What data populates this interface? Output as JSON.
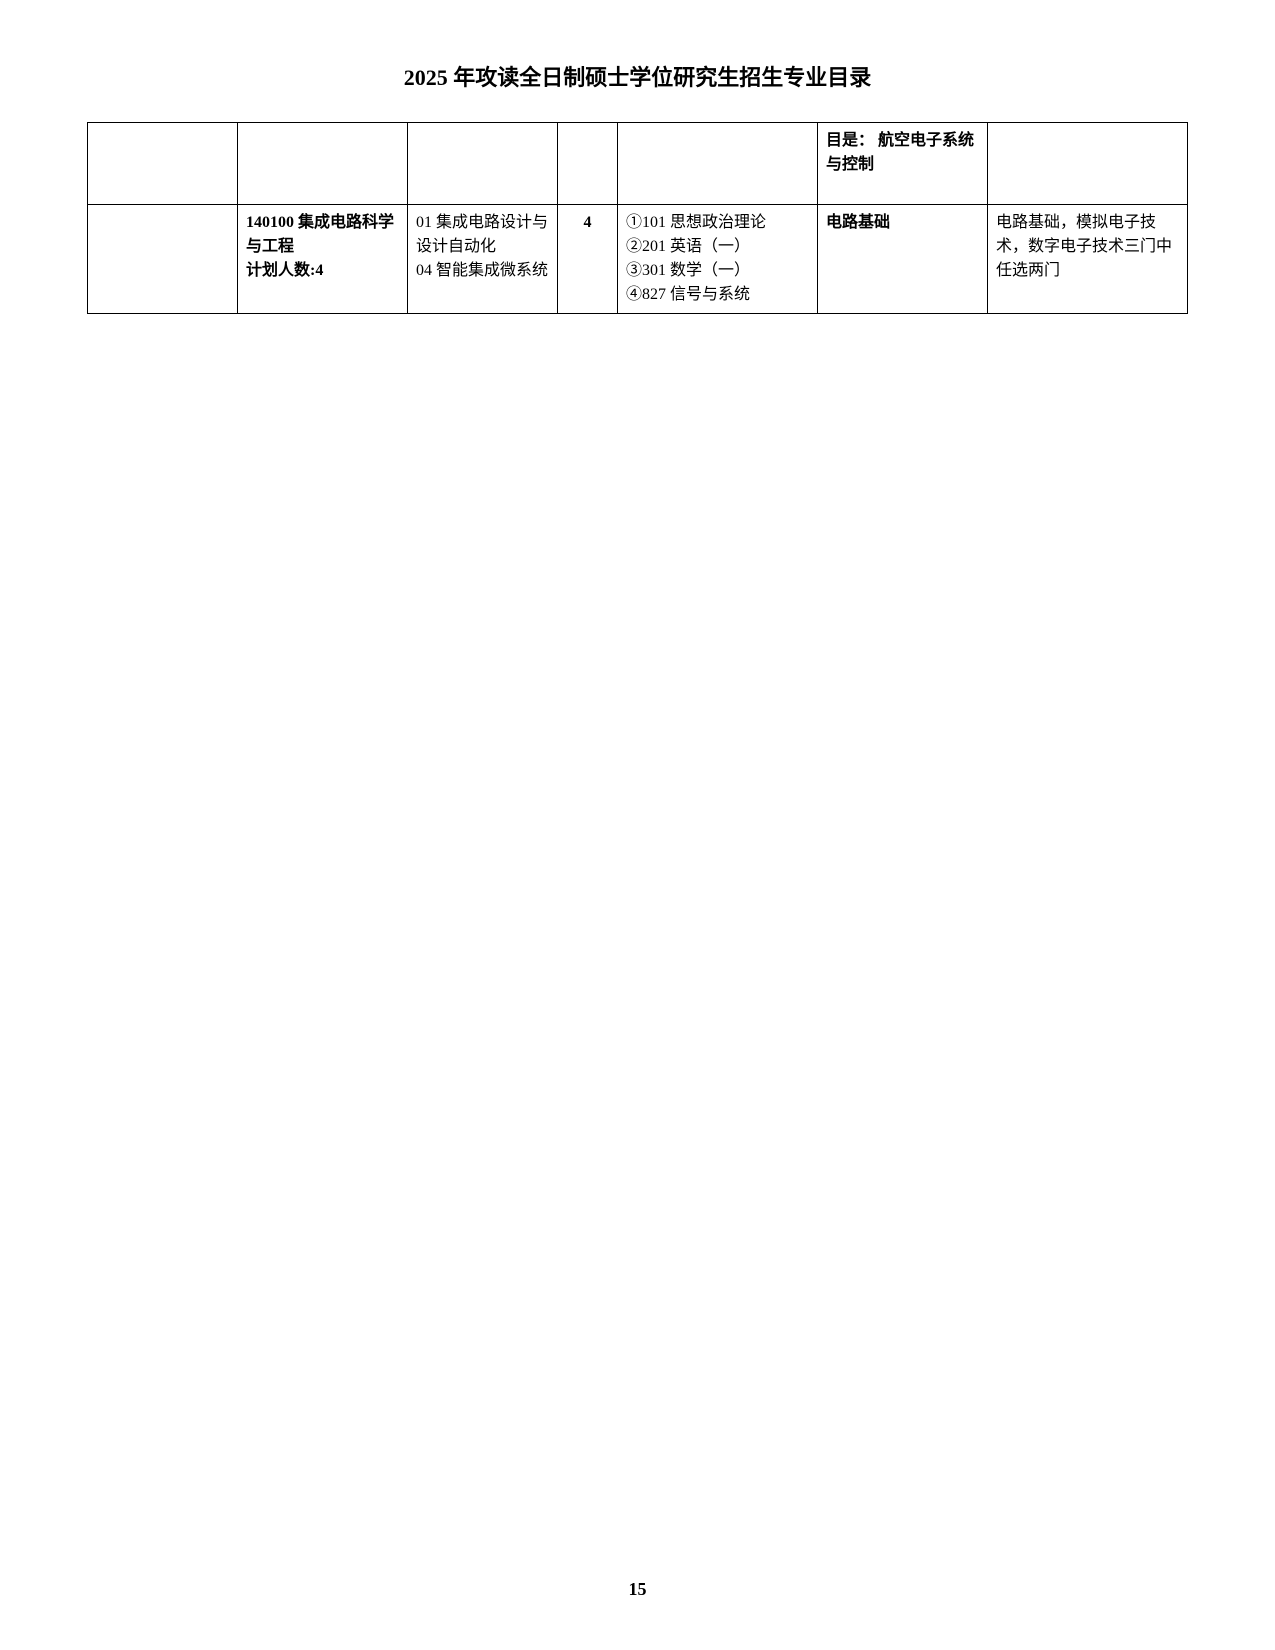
{
  "title": "2025 年攻读全日制硕士学位研究生招生专业目录",
  "pageNumber": "15",
  "table": {
    "rows": [
      {
        "c1": "",
        "c2": "",
        "c3": "",
        "c4": "",
        "c5": "",
        "c6": "目是： 航空电子系统与控制",
        "c7": ""
      },
      {
        "c1": "",
        "c2": "140100 集成电路科学与工程\n计划人数:4",
        "c3": "01 集成电路设计与设计自动化\n04 智能集成微系统",
        "c4": "4",
        "c5": "①101 思想政治理论\n②201 英语（一）\n③301 数学（一）\n④827 信号与系统",
        "c6": "电路基础",
        "c7": "电路基础，模拟电子技术，数字电子技术三门中任选两门"
      }
    ]
  }
}
